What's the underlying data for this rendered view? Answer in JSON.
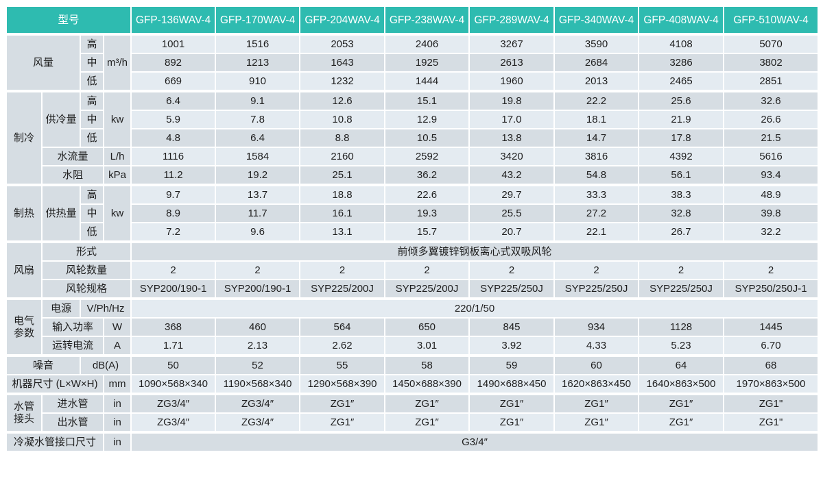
{
  "header": {
    "model_label": "型号",
    "models": [
      "GFP-136WAV-4",
      "GFP-170WAV-4",
      "GFP-204WAV-4",
      "GFP-238WAV-4",
      "GFP-289WAV-4",
      "GFP-340WAV-4",
      "GFP-408WAV-4",
      "GFP-510WAV-4"
    ]
  },
  "air_volume": {
    "label": "风量",
    "unit": "m³/h",
    "levels": [
      {
        "level": "高",
        "values": [
          "1001",
          "1516",
          "2053",
          "2406",
          "3267",
          "3590",
          "4108",
          "5070"
        ]
      },
      {
        "level": "中",
        "values": [
          "892",
          "1213",
          "1643",
          "1925",
          "2613",
          "2684",
          "3286",
          "3802"
        ]
      },
      {
        "level": "低",
        "values": [
          "669",
          "910",
          "1232",
          "1444",
          "1960",
          "2013",
          "2465",
          "2851"
        ]
      }
    ]
  },
  "cooling": {
    "label": "制冷",
    "capacity": {
      "label": "供冷量",
      "unit": "kw",
      "levels": [
        {
          "level": "高",
          "values": [
            "6.4",
            "9.1",
            "12.6",
            "15.1",
            "19.8",
            "22.2",
            "25.6",
            "32.6"
          ]
        },
        {
          "level": "中",
          "values": [
            "5.9",
            "7.8",
            "10.8",
            "12.9",
            "17.0",
            "18.1",
            "21.9",
            "26.6"
          ]
        },
        {
          "level": "低",
          "values": [
            "4.8",
            "6.4",
            "8.8",
            "10.5",
            "13.8",
            "14.7",
            "17.8",
            "21.5"
          ]
        }
      ]
    },
    "water_flow": {
      "label": "水流量",
      "unit": "L/h",
      "values": [
        "1116",
        "1584",
        "2160",
        "2592",
        "3420",
        "3816",
        "4392",
        "5616"
      ]
    },
    "water_resistance": {
      "label": "水阻",
      "unit": "kPa",
      "values": [
        "11.2",
        "19.2",
        "25.1",
        "36.2",
        "43.2",
        "54.8",
        "56.1",
        "93.4"
      ]
    }
  },
  "heating": {
    "label": "制热",
    "capacity": {
      "label": "供热量",
      "unit": "kw",
      "levels": [
        {
          "level": "高",
          "values": [
            "9.7",
            "13.7",
            "18.8",
            "22.6",
            "29.7",
            "33.3",
            "38.3",
            "48.9"
          ]
        },
        {
          "level": "中",
          "values": [
            "8.9",
            "11.7",
            "16.1",
            "19.3",
            "25.5",
            "27.2",
            "32.8",
            "39.8"
          ]
        },
        {
          "level": "低",
          "values": [
            "7.2",
            "9.6",
            "13.1",
            "15.7",
            "20.7",
            "22.1",
            "26.7",
            "32.2"
          ]
        }
      ]
    }
  },
  "fan": {
    "label": "风扇",
    "type": {
      "label": "形式",
      "value": "前倾多翼镀锌钢板离心式双吸风轮"
    },
    "count": {
      "label": "风轮数量",
      "values": [
        "2",
        "2",
        "2",
        "2",
        "2",
        "2",
        "2",
        "2"
      ]
    },
    "spec": {
      "label": "风轮规格",
      "values": [
        "SYP200/190-1",
        "SYP200/190-1",
        "SYP225/200J",
        "SYP225/200J",
        "SYP225/250J",
        "SYP225/250J",
        "SYP225/250J",
        "SYP250/250J-1"
      ]
    }
  },
  "electrical": {
    "label": "电气\n参数",
    "power_supply": {
      "label": "电源",
      "unit": "V/Ph/Hz",
      "value": "220/1/50"
    },
    "input_power": {
      "label": "输入功率",
      "unit": "W",
      "values": [
        "368",
        "460",
        "564",
        "650",
        "845",
        "934",
        "1128",
        "1445"
      ]
    },
    "current": {
      "label": "运转电流",
      "unit": "A",
      "values": [
        "1.71",
        "2.13",
        "2.62",
        "3.01",
        "3.92",
        "4.33",
        "5.23",
        "6.70"
      ]
    }
  },
  "noise": {
    "label": "噪音",
    "unit": "dB(A)",
    "values": [
      "50",
      "52",
      "55",
      "58",
      "59",
      "60",
      "64",
      "68"
    ]
  },
  "dimensions": {
    "label": "机器尺寸 (L×W×H)",
    "unit": "mm",
    "values": [
      "1090×568×340",
      "1190×568×340",
      "1290×568×390",
      "1450×688×390",
      "1490×688×450",
      "1620×863×450",
      "1640×863×500",
      "1970×863×500"
    ]
  },
  "water_pipe": {
    "label": "水管\n接头",
    "inlet": {
      "label": "进水管",
      "unit": "in",
      "values": [
        "ZG3/4″",
        "ZG3/4″",
        "ZG1″",
        "ZG1″",
        "ZG1″",
        "ZG1″",
        "ZG1″",
        "ZG1\""
      ]
    },
    "outlet": {
      "label": "出水管",
      "unit": "in",
      "values": [
        "ZG3/4″",
        "ZG3/4″",
        "ZG1″",
        "ZG1″",
        "ZG1″",
        "ZG1″",
        "ZG1″",
        "ZG1\""
      ]
    }
  },
  "condensate": {
    "label": "冷凝水管接口尺寸",
    "unit": "in",
    "value": "G3/4″"
  },
  "colors": {
    "header": "#2ebbb0",
    "label_bg": "#d6dde3",
    "row_light": "#e4ebf1",
    "row_dark": "#d6dde3"
  }
}
